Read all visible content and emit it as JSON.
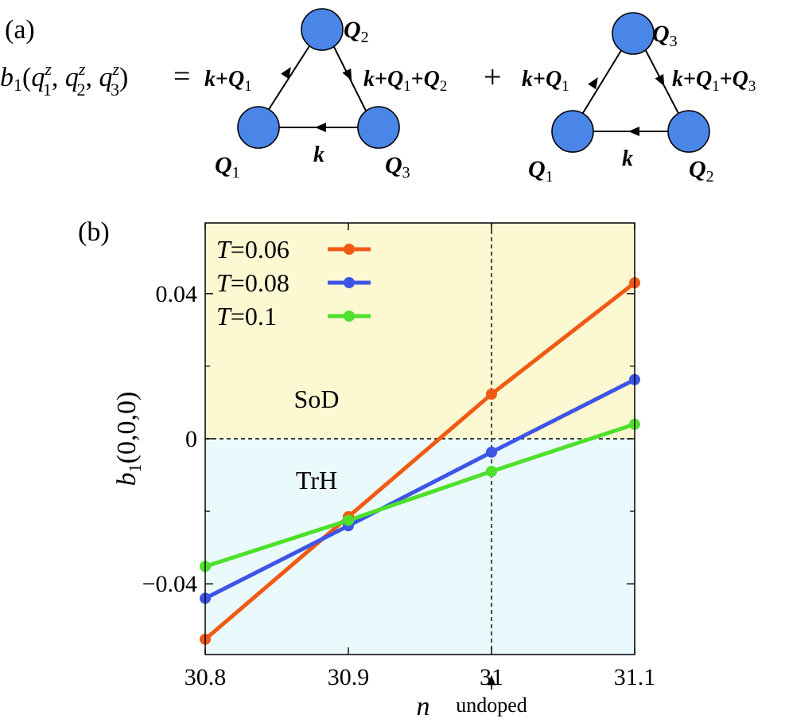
{
  "panel_a": {
    "label": "(a)",
    "lhs": {
      "sym": "b",
      "sub": "1",
      "args": [
        {
          "sym": "q",
          "sup": "z",
          "sub": "1"
        },
        {
          "sym": "q",
          "sup": "z",
          "sub": "2"
        },
        {
          "sym": "q",
          "sup": "z",
          "sub": "3"
        }
      ]
    },
    "equals": "=",
    "plus": "+",
    "diagrams": [
      {
        "top": {
          "sym": "Q",
          "sub": "2"
        },
        "left": {
          "sym": "Q",
          "sub": "1"
        },
        "right": {
          "sym": "Q",
          "sub": "3"
        },
        "edge_left": "k+Q1",
        "edge_right": "k+Q1+Q2",
        "edge_bottom": "k"
      },
      {
        "top": {
          "sym": "Q",
          "sub": "3"
        },
        "left": {
          "sym": "Q",
          "sub": "1"
        },
        "right": {
          "sym": "Q",
          "sub": "2"
        },
        "edge_left": "k+Q1",
        "edge_right": "k+Q1+Q3",
        "edge_bottom": "k"
      }
    ],
    "node_color": "#4a86e8"
  },
  "panel_b": {
    "label": "(b)",
    "region_labels": {
      "upper": "SoD",
      "lower": "TrH"
    },
    "region_colors": {
      "upper": "#fcf8d2",
      "lower": "#eafafc"
    },
    "annotation": "undoped"
  },
  "chart_data": {
    "type": "line",
    "title": "",
    "xlabel": "n",
    "ylabel": {
      "sym": "b",
      "sub": "1",
      "args": "(0,0,0)"
    },
    "xlim": [
      30.8,
      31.1
    ],
    "ylim": [
      -0.0595,
      0.0595
    ],
    "xticks": [
      30.8,
      30.9,
      31,
      31.1
    ],
    "xtick_labels": [
      "30.8",
      "30.9",
      "31",
      "31.1"
    ],
    "yticks": [
      -0.04,
      0,
      0.04
    ],
    "ytick_labels": [
      "−0.04",
      "0",
      "0.04"
    ],
    "minor_yticks": [
      -0.02,
      0.02
    ],
    "x": [
      30.8,
      30.9,
      31,
      31.1
    ],
    "series": [
      {
        "name": "T=0.06",
        "label_sym": "T",
        "label_val": "=0.06",
        "color": "#f05a14",
        "values": [
          -0.0553,
          -0.0215,
          0.0123,
          0.043
        ]
      },
      {
        "name": "T=0.08",
        "label_sym": "T",
        "label_val": "=0.08",
        "color": "#3c55e6",
        "values": [
          -0.044,
          -0.024,
          -0.0037,
          0.0163
        ]
      },
      {
        "name": "T=0.1",
        "label_sym": "T",
        "label_val": "=0.1",
        "color": "#4ee02c",
        "values": [
          -0.0352,
          -0.0225,
          -0.009,
          0.004
        ]
      }
    ],
    "reference_lines": {
      "horizontal": 0,
      "vertical": 31
    },
    "legend": "top-left"
  }
}
